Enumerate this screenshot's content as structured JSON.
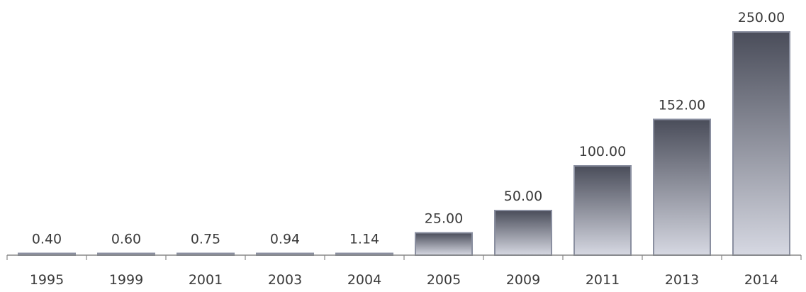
{
  "chart_data": {
    "type": "bar",
    "title": "",
    "xlabel": "",
    "ylabel": "",
    "categories": [
      "1995",
      "1999",
      "2001",
      "2003",
      "2004",
      "2005",
      "2009",
      "2011",
      "2013",
      "2014"
    ],
    "values": [
      0.4,
      0.6,
      0.75,
      0.94,
      1.14,
      25.0,
      50.0,
      100.0,
      152.0,
      250.0
    ],
    "value_labels": [
      "0.40",
      "0.60",
      "0.75",
      "0.94",
      "1.14",
      "25.00",
      "50.00",
      "100.00",
      "152.00",
      "250.00"
    ],
    "ylim": [
      0,
      250
    ],
    "grid": false,
    "legend": "none",
    "colors": {
      "bar_dark": "#4a4d5a",
      "bar_light": "#d6d8e2",
      "bar_edge": "#8a8fa0",
      "axis": "#888888",
      "text": "#3a3a3a"
    }
  }
}
